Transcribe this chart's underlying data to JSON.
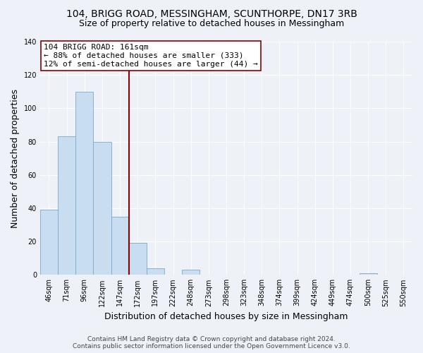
{
  "title": "104, BRIGG ROAD, MESSINGHAM, SCUNTHORPE, DN17 3RB",
  "subtitle": "Size of property relative to detached houses in Messingham",
  "xlabel": "Distribution of detached houses by size in Messingham",
  "ylabel": "Number of detached properties",
  "bin_labels": [
    "46sqm",
    "71sqm",
    "96sqm",
    "122sqm",
    "147sqm",
    "172sqm",
    "197sqm",
    "222sqm",
    "248sqm",
    "273sqm",
    "298sqm",
    "323sqm",
    "348sqm",
    "374sqm",
    "399sqm",
    "424sqm",
    "449sqm",
    "474sqm",
    "500sqm",
    "525sqm",
    "550sqm"
  ],
  "bar_heights": [
    39,
    83,
    110,
    80,
    35,
    19,
    4,
    0,
    3,
    0,
    0,
    0,
    0,
    0,
    0,
    0,
    0,
    0,
    1,
    0,
    0
  ],
  "bar_color": "#c8ddf0",
  "bar_edge_color": "#7aaacf",
  "vline_x_idx": 5,
  "vline_color": "#8b0000",
  "annotation_line1": "104 BRIGG ROAD: 161sqm",
  "annotation_line2": "← 88% of detached houses are smaller (333)",
  "annotation_line3": "12% of semi-detached houses are larger (44) →",
  "annotation_box_color": "white",
  "annotation_box_edge": "#8b0000",
  "ylim": [
    0,
    140
  ],
  "yticks": [
    0,
    20,
    40,
    60,
    80,
    100,
    120,
    140
  ],
  "footer_line1": "Contains HM Land Registry data © Crown copyright and database right 2024.",
  "footer_line2": "Contains public sector information licensed under the Open Government Licence v3.0.",
  "bg_color": "#eef2f8",
  "plot_bg_color": "#eef2f8",
  "grid_color": "#ffffff",
  "title_fontsize": 10,
  "subtitle_fontsize": 9,
  "label_fontsize": 9,
  "tick_fontsize": 7,
  "annotation_fontsize": 8,
  "footer_fontsize": 6.5
}
